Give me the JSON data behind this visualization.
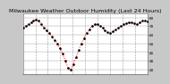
{
  "title": "Milwaukee Weather Outdoor Humidity (Last 24 Hours)",
  "background_color": "#c8c8c8",
  "plot_bg_color": "#ffffff",
  "grid_color": "#999999",
  "line_color": "#ff0000",
  "dot_color": "#000000",
  "y_values": [
    68,
    70,
    72,
    74,
    76,
    78,
    76,
    72,
    68,
    65,
    62,
    58,
    54,
    50,
    44,
    38,
    30,
    22,
    20,
    26,
    34,
    42,
    50,
    56,
    62,
    66,
    70,
    72,
    72,
    70,
    68,
    65,
    63,
    62,
    64,
    66,
    68,
    70,
    72,
    73,
    74,
    74,
    73,
    72,
    74,
    76,
    76,
    75
  ],
  "ylim": [
    15,
    85
  ],
  "yticks": [
    20,
    30,
    40,
    50,
    60,
    70,
    80
  ],
  "num_vgrid_lines": 9,
  "title_fontsize": 4.5,
  "tick_fontsize": 3.0
}
